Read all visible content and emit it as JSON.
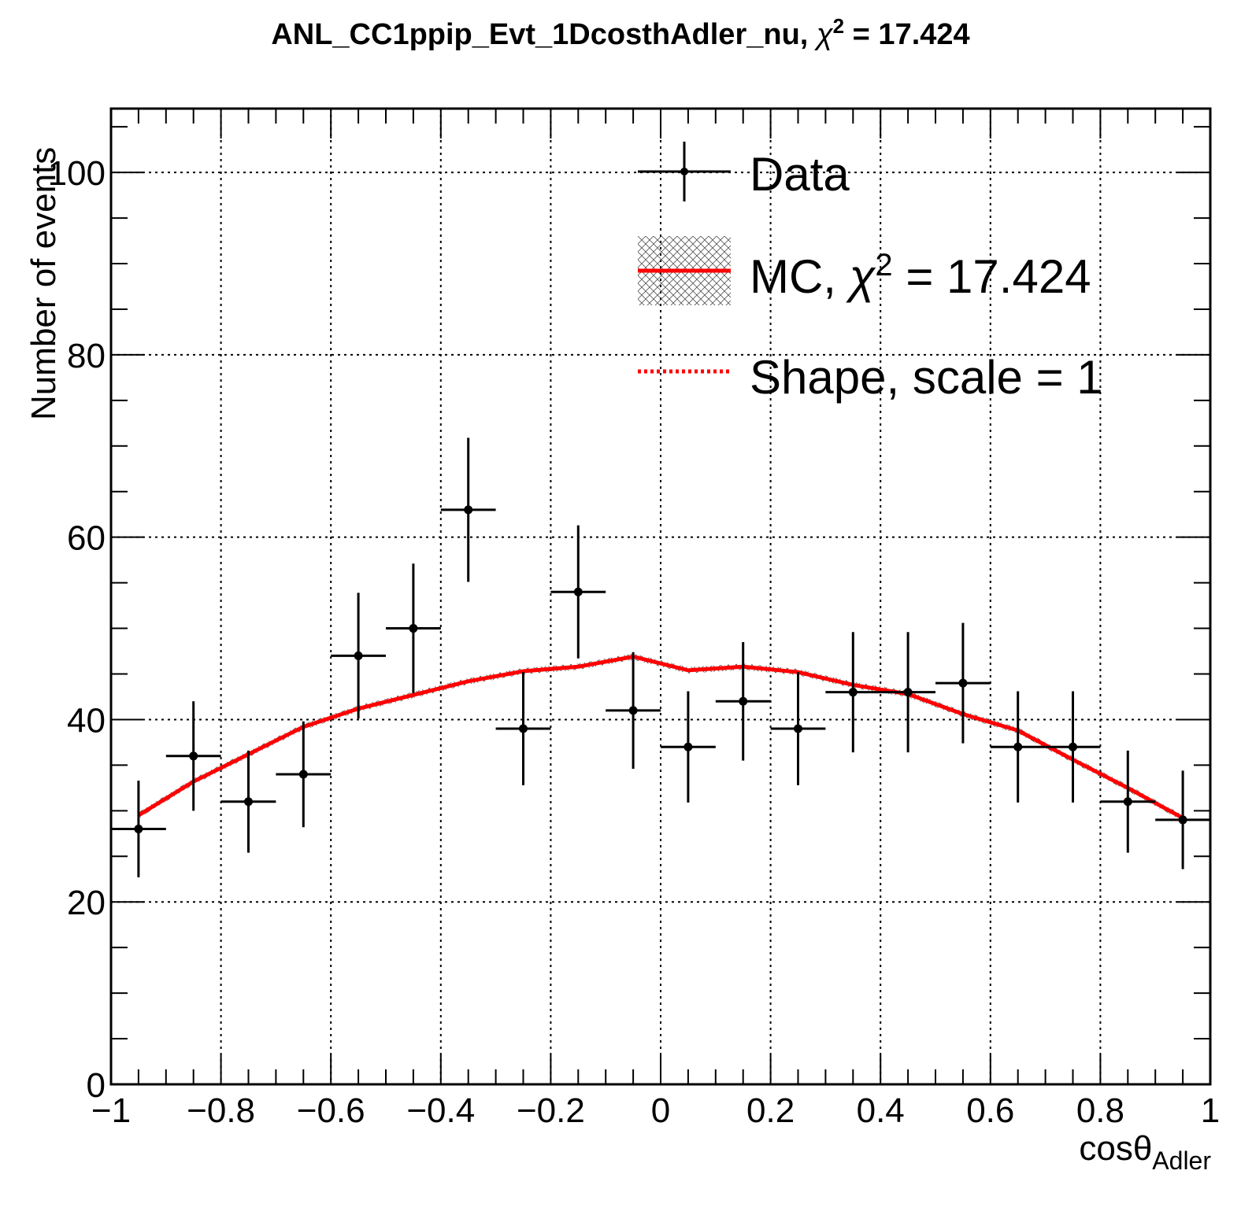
{
  "title": {
    "prefix": "ANL_CC1ppip_Evt_1DcosthAdler_nu, ",
    "chi_symbol": "χ",
    "chi_exp": "2",
    "suffix": " = 17.424"
  },
  "legend": {
    "data_label": "Data",
    "mc_prefix": "MC, ",
    "mc_chi": "χ",
    "mc_exp": "2",
    "mc_suffix": " = 17.424",
    "shape_label": "Shape, scale = 1"
  },
  "colors": {
    "mc_line": "#ff0000",
    "data": "#000000",
    "grid": "#000000"
  },
  "chart_data": {
    "type": "line",
    "title": "ANL_CC1ppip_Evt_1DcosthAdler_nu, χ2 = 17.424",
    "xlabel_main": "cosθ",
    "xlabel_sub": "Adler",
    "ylabel": "Number of events",
    "xlim": [
      -1,
      1
    ],
    "ylim": [
      0,
      107
    ],
    "grid": true,
    "legend_position": "top-right",
    "x_ticks": [
      {
        "v": -1,
        "label": "−1"
      },
      {
        "v": -0.8,
        "label": "−0.8"
      },
      {
        "v": -0.6,
        "label": "−0.6"
      },
      {
        "v": -0.4,
        "label": "−0.4"
      },
      {
        "v": -0.2,
        "label": "−0.2"
      },
      {
        "v": 0,
        "label": "0"
      },
      {
        "v": 0.2,
        "label": "0.2"
      },
      {
        "v": 0.4,
        "label": "0.4"
      },
      {
        "v": 0.6,
        "label": "0.6"
      },
      {
        "v": 0.8,
        "label": "0.8"
      },
      {
        "v": 1,
        "label": "1"
      }
    ],
    "y_ticks": [
      {
        "v": 0,
        "label": "0"
      },
      {
        "v": 20,
        "label": "20"
      },
      {
        "v": 40,
        "label": "40"
      },
      {
        "v": 60,
        "label": "60"
      },
      {
        "v": 80,
        "label": "80"
      },
      {
        "v": 100,
        "label": "100"
      }
    ],
    "bin_half_width": 0.05,
    "series": [
      {
        "name": "Data",
        "style": "points-with-errors",
        "x": [
          -0.95,
          -0.85,
          -0.75,
          -0.65,
          -0.55,
          -0.45,
          -0.35,
          -0.25,
          -0.15,
          -0.05,
          0.05,
          0.15,
          0.25,
          0.35,
          0.45,
          0.55,
          0.65,
          0.75,
          0.85,
          0.95
        ],
        "y": [
          28,
          36,
          31,
          34,
          47,
          50,
          63,
          39,
          54,
          41,
          37,
          42,
          39,
          43,
          43,
          44,
          37,
          37,
          31,
          29
        ],
        "yerr": [
          5.3,
          6.0,
          5.6,
          5.8,
          6.9,
          7.1,
          7.9,
          6.2,
          7.3,
          6.4,
          6.1,
          6.5,
          6.2,
          6.6,
          6.6,
          6.6,
          6.1,
          6.1,
          5.6,
          5.4
        ]
      },
      {
        "name": "MC, χ2 = 17.424",
        "style": "line",
        "x": [
          -0.95,
          -0.85,
          -0.75,
          -0.65,
          -0.55,
          -0.45,
          -0.35,
          -0.25,
          -0.15,
          -0.05,
          0.05,
          0.15,
          0.25,
          0.35,
          0.45,
          0.55,
          0.65,
          0.75,
          0.85,
          0.95
        ],
        "y": [
          29.5,
          33.2,
          36.2,
          39.2,
          41.2,
          42.7,
          44.2,
          45.3,
          45.8,
          46.9,
          45.4,
          45.8,
          45.2,
          43.8,
          42.8,
          40.6,
          38.8,
          35.6,
          32.5,
          29.2
        ]
      },
      {
        "name": "Shape, scale = 1",
        "style": "dotted-line",
        "x": [],
        "y": []
      }
    ]
  }
}
